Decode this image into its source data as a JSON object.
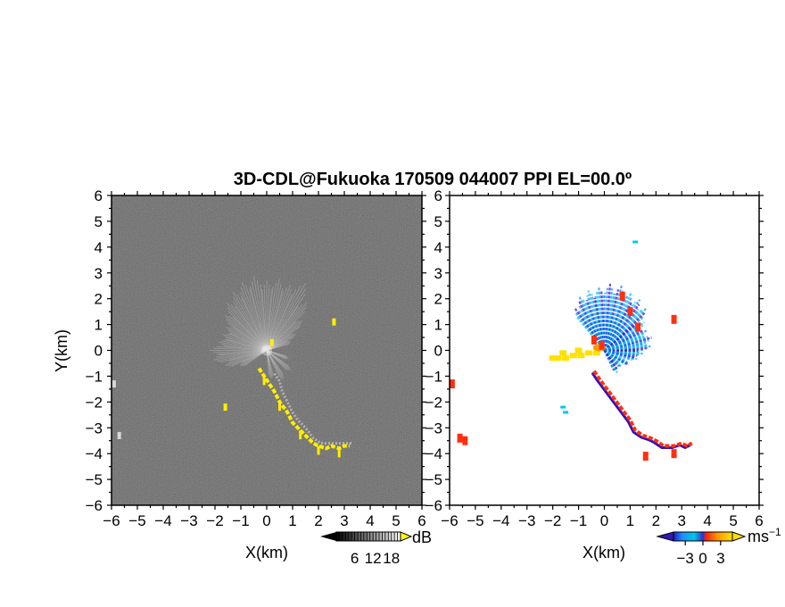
{
  "title": "3D-CDL@Fukuoka 170509 044007 PPI EL=00.0º",
  "chart_data": [
    {
      "type": "heatmap",
      "panel": "left",
      "xlabel": "X(km)",
      "ylabel": "Y(km)",
      "xlim": [
        -6,
        6
      ],
      "ylim": [
        -6,
        6
      ],
      "xticks": [
        "−6",
        "−5",
        "−4",
        "−3",
        "−2",
        "−1",
        "0",
        "1",
        "2",
        "3",
        "4",
        "5",
        "6"
      ],
      "yticks": [
        "6",
        "5",
        "4",
        "3",
        "2",
        "1",
        "0",
        "−1",
        "−2",
        "−3",
        "−4",
        "−5",
        "−6"
      ],
      "background_color": "#2a2a2a",
      "colorbar": {
        "unit": "dB",
        "ticks": [
          "6",
          "12",
          "18"
        ],
        "range": [
          0,
          21
        ]
      },
      "features": {
        "radial_fan": {
          "center": [
            0,
            0
          ],
          "description_color": "#e0e0e0",
          "rays": [
            {
              "angle": 60,
              "length": 3.0
            },
            {
              "angle": 70,
              "length": 2.7
            },
            {
              "angle": 80,
              "length": 2.8
            },
            {
              "angle": 90,
              "length": 2.7
            },
            {
              "angle": 100,
              "length": 2.9
            },
            {
              "angle": 110,
              "length": 2.8
            },
            {
              "angle": 120,
              "length": 2.6
            },
            {
              "angle": 130,
              "length": 2.4
            },
            {
              "angle": 140,
              "length": 2.1
            },
            {
              "angle": 150,
              "length": 1.8
            },
            {
              "angle": 160,
              "length": 1.8
            },
            {
              "angle": 170,
              "length": 1.9
            },
            {
              "angle": 180,
              "length": 2.2
            },
            {
              "angle": 190,
              "length": 2.1
            },
            {
              "angle": 200,
              "length": 1.7
            },
            {
              "angle": 210,
              "length": 1.2
            },
            {
              "angle": 50,
              "length": 2.4
            },
            {
              "angle": 40,
              "length": 1.8
            },
            {
              "angle": 30,
              "length": 1.3
            },
            {
              "angle": 20,
              "length": 1.0
            },
            {
              "angle": -20,
              "length": 0.9
            },
            {
              "angle": -40,
              "length": 1.2
            },
            {
              "angle": -60,
              "length": 1.3
            },
            {
              "angle": -80,
              "length": 1.1
            }
          ]
        },
        "yellow_trace": {
          "color": "#ffee00",
          "points": [
            [
              -0.3,
              -0.7
            ],
            [
              -0.1,
              -1.0
            ],
            [
              0.1,
              -1.3
            ],
            [
              0.3,
              -1.6
            ],
            [
              0.5,
              -2.0
            ],
            [
              0.8,
              -2.4
            ],
            [
              1.0,
              -2.8
            ],
            [
              1.3,
              -3.1
            ],
            [
              1.6,
              -3.4
            ],
            [
              1.8,
              -3.6
            ],
            [
              2.0,
              -3.7
            ],
            [
              2.3,
              -3.8
            ],
            [
              2.5,
              -3.7
            ],
            [
              2.8,
              -3.8
            ],
            [
              3.0,
              -3.7
            ],
            [
              3.2,
              -3.7
            ]
          ]
        },
        "white_trace": {
          "color": "#d8d8d8",
          "points": [
            [
              0.3,
              -0.9
            ],
            [
              0.5,
              -1.2
            ],
            [
              0.6,
              -1.6
            ],
            [
              0.8,
              -2.0
            ],
            [
              1.0,
              -2.4
            ],
            [
              1.2,
              -2.7
            ],
            [
              1.5,
              -3.0
            ],
            [
              1.8,
              -3.4
            ],
            [
              2.1,
              -3.6
            ],
            [
              2.5,
              -3.6
            ],
            [
              3.0,
              -3.6
            ],
            [
              3.3,
              -3.6
            ]
          ]
        },
        "small_echoes": [
          {
            "x": 2.6,
            "y": 1.1,
            "color": "#ffee00"
          },
          {
            "x": -1.6,
            "y": -2.2,
            "color": "#ffee00"
          },
          {
            "x": 0.2,
            "y": 0.3,
            "color": "#ffee00"
          },
          {
            "x": -5.9,
            "y": -1.3,
            "color": "#d8d8d8"
          },
          {
            "x": -5.7,
            "y": -3.3,
            "color": "#d8d8d8"
          }
        ]
      }
    },
    {
      "type": "scatter",
      "panel": "right",
      "xlabel": "X(km)",
      "xlim": [
        -6,
        6
      ],
      "ylim": [
        -6,
        6
      ],
      "xticks": [
        "−6",
        "−5",
        "−4",
        "−3",
        "−2",
        "−1",
        "0",
        "1",
        "2",
        "3",
        "4",
        "5",
        "6"
      ],
      "yticks": [
        "6",
        "5",
        "4",
        "3",
        "2",
        "1",
        "0",
        "−1",
        "−2",
        "−3",
        "−4",
        "−5",
        "−6"
      ],
      "colorbar": {
        "unit": "ms",
        "unit_exp": "−1",
        "ticks": [
          "−3",
          "0",
          "3"
        ],
        "range": [
          -5,
          5
        ]
      },
      "velocity_colors": {
        "approaching": "#1e8cff",
        "cyan": "#00c8e6",
        "receding": "#ff3010",
        "orange": "#ff9900",
        "yellow": "#ffe000",
        "purple": "#3010c0"
      },
      "features": {
        "blue_fan": {
          "center": [
            0,
            0
          ],
          "rays": [
            {
              "angle": 55,
              "length": 2.4
            },
            {
              "angle": 65,
              "length": 2.5
            },
            {
              "angle": 75,
              "length": 2.6
            },
            {
              "angle": 85,
              "length": 2.6
            },
            {
              "angle": 95,
              "length": 2.5
            },
            {
              "angle": 105,
              "length": 2.4
            },
            {
              "angle": 115,
              "length": 2.3
            },
            {
              "angle": 125,
              "length": 2.0
            },
            {
              "angle": 45,
              "length": 2.3
            },
            {
              "angle": 35,
              "length": 1.9
            },
            {
              "angle": 25,
              "length": 1.8
            },
            {
              "angle": 15,
              "length": 1.9
            },
            {
              "angle": 5,
              "length": 1.8
            },
            {
              "angle": -5,
              "length": 1.5
            },
            {
              "angle": -15,
              "length": 1.3
            },
            {
              "angle": -30,
              "length": 1.1
            },
            {
              "angle": -45,
              "length": 0.9
            },
            {
              "angle": -60,
              "length": 1.0
            }
          ]
        },
        "yellow_plume": {
          "points": [
            [
              -0.3,
              -0.1
            ],
            [
              -0.6,
              -0.1
            ],
            [
              -0.9,
              -0.2
            ],
            [
              -1.2,
              -0.2
            ],
            [
              -1.5,
              -0.3
            ],
            [
              -1.8,
              -0.3
            ],
            [
              -2.0,
              -0.3
            ],
            [
              -1.6,
              -0.1
            ],
            [
              -1.0,
              0.0
            ]
          ]
        },
        "red_streak": {
          "points": [
            [
              -0.4,
              -0.8
            ],
            [
              -0.2,
              -1.1
            ],
            [
              0.1,
              -1.5
            ],
            [
              0.4,
              -1.9
            ],
            [
              0.7,
              -2.3
            ],
            [
              1.0,
              -2.7
            ],
            [
              1.2,
              -3.1
            ],
            [
              1.5,
              -3.3
            ],
            [
              1.8,
              -3.4
            ],
            [
              2.0,
              -3.5
            ],
            [
              2.3,
              -3.7
            ],
            [
              2.7,
              -3.7
            ],
            [
              3.0,
              -3.6
            ],
            [
              3.2,
              -3.7
            ],
            [
              3.4,
              -3.6
            ]
          ]
        },
        "red_patches": [
          [
            0.7,
            2.1
          ],
          [
            1.0,
            1.5
          ],
          [
            1.3,
            0.9
          ],
          [
            2.7,
            1.2
          ],
          [
            -5.9,
            -1.3
          ],
          [
            -5.6,
            -3.4
          ],
          [
            -5.4,
            -3.5
          ],
          [
            1.6,
            -4.1
          ],
          [
            2.7,
            -4.0
          ],
          [
            -0.4,
            0.4
          ],
          [
            -0.1,
            0.2
          ]
        ],
        "cyan_specks": [
          [
            1.2,
            4.2
          ],
          [
            -1.6,
            -2.2
          ],
          [
            -1.5,
            -2.4
          ]
        ]
      }
    }
  ]
}
